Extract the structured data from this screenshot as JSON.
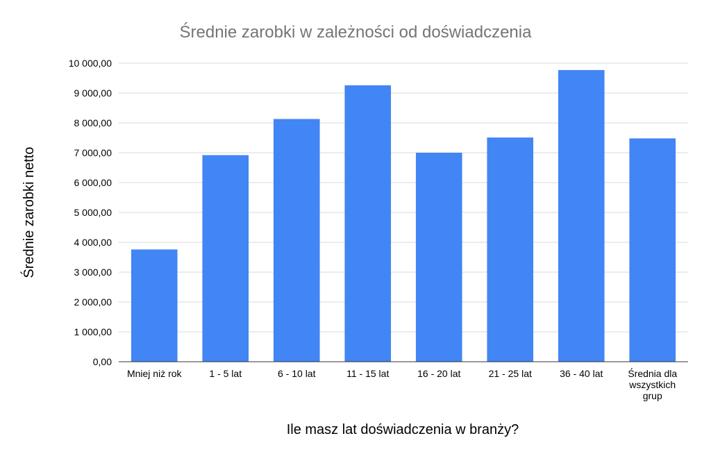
{
  "chart_data": {
    "type": "bar",
    "title": "Średnie zarobki w zależności od doświadczenia",
    "xlabel": "Ile masz lat doświadczenia w branży?",
    "ylabel": "Średnie zarobki netto",
    "categories": [
      "Mniej niż rok",
      "1 - 5 lat",
      "6 - 10 lat",
      "11 - 15 lat",
      "16 - 20 lat",
      "21 - 25 lat",
      "36 - 40 lat",
      "Średnia dla wszystkich grup"
    ],
    "category_lines": [
      [
        "Mniej niż rok"
      ],
      [
        "1 - 5 lat"
      ],
      [
        "6 - 10 lat"
      ],
      [
        "11 - 15 lat"
      ],
      [
        "16 - 20 lat"
      ],
      [
        "21 - 25 lat"
      ],
      [
        "36 - 40 lat"
      ],
      [
        "Średnia dla",
        "wszystkich",
        "grup"
      ]
    ],
    "values": [
      3760,
      6920,
      8130,
      9260,
      7000,
      7510,
      9770,
      7480
    ],
    "ylim": [
      0,
      10000
    ],
    "yticks": [
      0,
      1000,
      2000,
      3000,
      4000,
      5000,
      6000,
      7000,
      8000,
      9000,
      10000
    ],
    "ytick_labels": [
      "0,00",
      "1 000,00",
      "2 000,00",
      "3 000,00",
      "4 000,00",
      "5 000,00",
      "6 000,00",
      "7 000,00",
      "8 000,00",
      "9 000,00",
      "10 000,00"
    ],
    "grid": true,
    "legend": "none",
    "colors": {
      "bar": "#4285f4",
      "title": "#757575",
      "grid": "#d9d9d9"
    }
  }
}
